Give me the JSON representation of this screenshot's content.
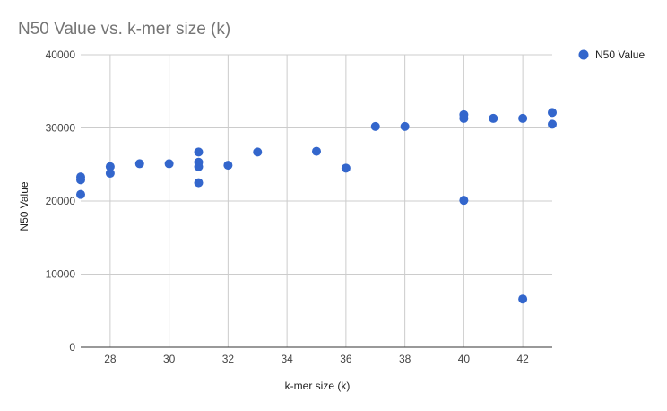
{
  "chart_data": {
    "type": "scatter",
    "title": "N50 Value  vs. k-mer size (k)",
    "xlabel": "k-mer size (k)",
    "ylabel": "N50 Value",
    "xlim": [
      27,
      43
    ],
    "ylim": [
      0,
      40000
    ],
    "x_ticks": [
      "28",
      "30",
      "32",
      "34",
      "36",
      "38",
      "40",
      "42"
    ],
    "y_ticks": [
      "0",
      "10000",
      "20000",
      "30000",
      "40000"
    ],
    "grid": true,
    "legend_position": "right",
    "color": "#3366cc",
    "series": [
      {
        "name": "N50 Value",
        "points": [
          {
            "x": 27,
            "y": 23300
          },
          {
            "x": 27,
            "y": 22900
          },
          {
            "x": 27,
            "y": 20900
          },
          {
            "x": 28,
            "y": 24700
          },
          {
            "x": 28,
            "y": 23800
          },
          {
            "x": 29,
            "y": 25100
          },
          {
            "x": 30,
            "y": 25100
          },
          {
            "x": 31,
            "y": 26700
          },
          {
            "x": 31,
            "y": 25300
          },
          {
            "x": 31,
            "y": 24700
          },
          {
            "x": 31,
            "y": 22500
          },
          {
            "x": 32,
            "y": 24900
          },
          {
            "x": 33,
            "y": 26700
          },
          {
            "x": 35,
            "y": 26800
          },
          {
            "x": 36,
            "y": 24500
          },
          {
            "x": 37,
            "y": 30200
          },
          {
            "x": 38,
            "y": 30200
          },
          {
            "x": 40,
            "y": 31800
          },
          {
            "x": 40,
            "y": 31300
          },
          {
            "x": 40,
            "y": 20100
          },
          {
            "x": 41,
            "y": 31300
          },
          {
            "x": 42,
            "y": 31300
          },
          {
            "x": 42,
            "y": 6600
          },
          {
            "x": 43,
            "y": 32100
          },
          {
            "x": 43,
            "y": 30500
          }
        ]
      }
    ]
  }
}
